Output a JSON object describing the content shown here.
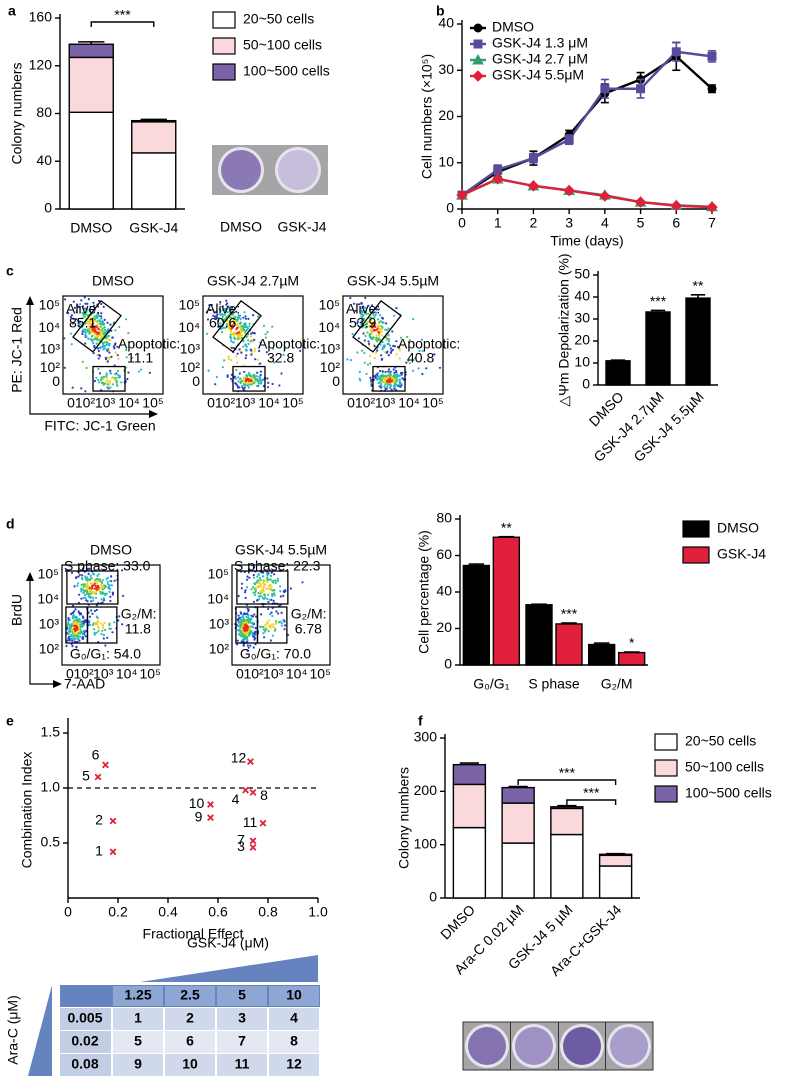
{
  "panel_labels": [
    "a",
    "b",
    "c",
    "d",
    "e",
    "f"
  ],
  "dish_image_labels": [
    "DMSO",
    "GSK-J4"
  ],
  "flow_c": {
    "y_label": "PE: JC-1 Red",
    "x_label": "FITC: JC-1 Green",
    "y_ticks": [
      "0",
      "10²",
      "10³",
      "10⁴",
      "10⁵"
    ],
    "x_ticks": [
      "0",
      "10²",
      "10³",
      "10⁴",
      "10⁵"
    ],
    "plots": [
      {
        "title": "DMSO",
        "alive_label": "Alive:",
        "alive_value": "85.1",
        "apoptotic_label": "Apoptotic:",
        "apoptotic_value": "11.1"
      },
      {
        "title": "GSK-J4 2.7µM",
        "alive_label": "Alive:",
        "alive_value": "60.6",
        "apoptotic_label": "Apoptotic:",
        "apoptotic_value": "32.8"
      },
      {
        "title": "GSK-J4 5.5µM",
        "alive_label": "Alive:",
        "alive_value": "53.9",
        "apoptotic_label": "Apoptotic:",
        "apoptotic_value": "40.8"
      }
    ]
  },
  "flow_d": {
    "y_label": "BrdU",
    "x_label": "7-AAD",
    "y_ticks": [
      "10²",
      "10³",
      "10⁴",
      "10⁵"
    ],
    "x_ticks": [
      "0",
      "10²",
      "10³",
      "10⁴",
      "10⁵"
    ],
    "plots": [
      {
        "title": "DMSO",
        "s_phase": "S phase: 33.0",
        "g2m_label": "G₂/M:",
        "g2m_value": "11.8",
        "g0g1": "G₀/G₁: 54.0"
      },
      {
        "title": "GSK-J4 5.5µM",
        "s_phase": "S phase: 22.3",
        "g2m_label": "G₂/M:",
        "g2m_value": "6.78",
        "g0g1": "G₀/G₁: 70.0"
      }
    ]
  },
  "table": {
    "column_header": "GSK-J4 (μM)",
    "row_header": "Ara-C (μM)",
    "columns": [
      "1.25",
      "2.5",
      "5",
      "10"
    ],
    "rows": [
      {
        "label": "0.005",
        "cells": [
          "1",
          "2",
          "3",
          "4"
        ]
      },
      {
        "label": "0.02",
        "cells": [
          "5",
          "6",
          "7",
          "8"
        ]
      },
      {
        "label": "0.08",
        "cells": [
          "9",
          "10",
          "11",
          "12"
        ]
      }
    ]
  },
  "chart_data": [
    {
      "type": "bar",
      "stacked": true,
      "y_label": "Colony numbers",
      "categories": [
        "DMSO",
        "GSK-J4"
      ],
      "series": [
        {
          "name": "20~50 cells",
          "color": "#ffffff",
          "values": [
            81,
            47
          ],
          "errors": [
            1.5,
            1
          ]
        },
        {
          "name": "50~100 cells",
          "color": "#f9d9dc",
          "values": [
            46,
            26
          ],
          "errors": [
            2,
            1
          ]
        },
        {
          "name": "100~500 cells",
          "color": "#7a63a6",
          "values": [
            11,
            1
          ],
          "errors": [
            2,
            1
          ]
        }
      ],
      "ylim": [
        0,
        160
      ],
      "yticks": [
        0,
        40,
        80,
        120,
        160
      ],
      "annotations": [
        "***"
      ]
    },
    {
      "type": "line",
      "y_label": "Cell numbers (×10⁵)",
      "x_label": "Time (days)",
      "x": [
        0,
        1,
        2,
        3,
        4,
        5,
        6,
        7
      ],
      "xlim": [
        0,
        7
      ],
      "xticks": [
        0,
        1,
        2,
        3,
        4,
        5,
        6,
        7
      ],
      "ylim": [
        0,
        40
      ],
      "yticks": [
        0,
        10,
        20,
        30,
        40
      ],
      "series": [
        {
          "name": "DMSO",
          "color": "#000000",
          "marker": "circle",
          "values": [
            3,
            8,
            11,
            16,
            25,
            28,
            33,
            26
          ],
          "errors": [
            0.3,
            1,
            1.5,
            1,
            2,
            1.5,
            3,
            0.8
          ]
        },
        {
          "name": "GSK-J4 1.3 μM",
          "color": "#5b4a9b",
          "marker": "square",
          "values": [
            3,
            8.5,
            11,
            15,
            26,
            26,
            34,
            33
          ],
          "errors": [
            0.3,
            1,
            1,
            1,
            2,
            2,
            2,
            1.2
          ]
        },
        {
          "name": "GSK-J4 2.7 μM",
          "color": "#2e9e6e",
          "marker": "triangle",
          "values": [
            3,
            6.5,
            5,
            4,
            3,
            1.5,
            0.8,
            0.5
          ]
        },
        {
          "name": "GSK-J4 5.5μM",
          "color": "#e0203a",
          "marker": "diamond",
          "values": [
            3,
            6.5,
            5,
            4,
            2.8,
            1.5,
            0.7,
            0.4
          ]
        }
      ]
    },
    {
      "type": "bar",
      "y_label": "△Ψm Depolarization (%)",
      "categories": [
        "DMSO",
        "GSK-J4 2.7µM",
        "GSK-J4 5.5µM"
      ],
      "values": [
        11,
        33.2,
        39.5
      ],
      "errors": [
        0.3,
        0.7,
        1.5
      ],
      "color": "#000000",
      "ylim": [
        0,
        50
      ],
      "yticks": [
        0,
        10,
        20,
        30,
        40,
        50
      ],
      "annotations": [
        "***",
        "**"
      ]
    },
    {
      "type": "bar",
      "y_label": "Cell percentage (%)",
      "categories": [
        "G₀/G₁",
        "S phase",
        "G₂/M"
      ],
      "series": [
        {
          "name": "DMSO",
          "color": "#000000",
          "values": [
            54.5,
            33,
            11.2
          ],
          "errors": [
            0.8,
            0.3,
            0.8
          ]
        },
        {
          "name": "GSK-J4",
          "color": "#e0203a",
          "values": [
            70,
            22.5,
            6.8
          ],
          "errors": [
            0.3,
            0.5,
            0.3
          ]
        }
      ],
      "ylim": [
        0,
        80
      ],
      "yticks": [
        0,
        20,
        40,
        60,
        80
      ],
      "annotations": [
        "**",
        "***",
        "*"
      ]
    },
    {
      "type": "scatter",
      "x_label": "Fractional Effect",
      "y_label": "Combination Index",
      "x": [
        0.18,
        0.18,
        0.74,
        0.71,
        0.12,
        0.15,
        0.74,
        0.74,
        0.57,
        0.57,
        0.78,
        0.73
      ],
      "y": [
        0.42,
        0.7,
        0.46,
        0.98,
        1.1,
        1.21,
        0.52,
        0.96,
        0.73,
        0.85,
        0.68,
        1.24
      ],
      "point_labels": [
        "1",
        "2",
        "3",
        "4",
        "5",
        "6",
        "7",
        "8",
        "9",
        "10",
        "11",
        "12"
      ],
      "color": "#e0203a",
      "reference_line": 1,
      "xlim": [
        0,
        1
      ],
      "xticks": [
        0,
        0.2,
        0.4,
        0.6,
        0.8,
        {
          "value": 1,
          "label": "1.0"
        }
      ],
      "ylim": [
        0,
        1.6
      ],
      "yticks": [
        0.5,
        {
          "value": 1,
          "label": "1.0"
        },
        1.5
      ]
    },
    {
      "type": "bar",
      "stacked": true,
      "y_label": "Colony numbers",
      "categories": [
        "DMSO",
        "Ara-C 0.02 µM",
        "GSK-J4 5 µM",
        "Ara-C+GSK-J4"
      ],
      "series": [
        {
          "name": "20~50 cells",
          "color": "#ffffff",
          "values": [
            132,
            103,
            119,
            60
          ],
          "errors": [
            6,
            4,
            3,
            5
          ]
        },
        {
          "name": "50~100 cells",
          "color": "#f9d9dc",
          "values": [
            81,
            75,
            49,
            20
          ],
          "errors": [
            3,
            3,
            3,
            2
          ]
        },
        {
          "name": "100~500 cells",
          "color": "#7a63a6",
          "values": [
            37,
            29,
            3,
            2
          ],
          "errors": [
            3,
            2,
            2,
            1
          ]
        }
      ],
      "ylim": [
        0,
        300
      ],
      "yticks": [
        0,
        100,
        200,
        300
      ],
      "annotations": [
        "***",
        "***"
      ]
    }
  ]
}
